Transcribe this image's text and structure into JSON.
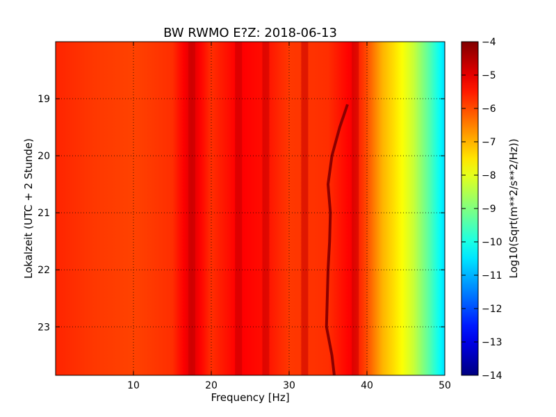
{
  "chart_data": {
    "type": "heatmap",
    "title": "BW RWMO E?Z: 2018-06-13",
    "xlabel": "Frequency [Hz]",
    "ylabel": "Lokalzeit (UTC + 2 Stunde)",
    "colorbar_label": "Log10(Sqrt(m**2/s**2/Hz))",
    "xlim": [
      0,
      50
    ],
    "ylim_top_to_bottom": [
      18.0,
      23.85
    ],
    "clim": [
      -14,
      -4
    ],
    "colormap": "jet",
    "grid": true,
    "x_ticks": [
      {
        "value": 10,
        "label": "10"
      },
      {
        "value": 20,
        "label": "20"
      },
      {
        "value": 30,
        "label": "30"
      },
      {
        "value": 40,
        "label": "40"
      },
      {
        "value": 50,
        "label": "50"
      }
    ],
    "y_ticks": [
      {
        "value": 19,
        "label": "19"
      },
      {
        "value": 20,
        "label": "20"
      },
      {
        "value": 21,
        "label": "21"
      },
      {
        "value": 22,
        "label": "22"
      },
      {
        "value": 23,
        "label": "23"
      }
    ],
    "colorbar_ticks": [
      {
        "value": -4,
        "label": "−4"
      },
      {
        "value": -5,
        "label": "−5"
      },
      {
        "value": -6,
        "label": "−6"
      },
      {
        "value": -7,
        "label": "−7"
      },
      {
        "value": -8,
        "label": "−8"
      },
      {
        "value": -9,
        "label": "−9"
      },
      {
        "value": -10,
        "label": "−10"
      },
      {
        "value": -11,
        "label": "−11"
      },
      {
        "value": -12,
        "label": "−12"
      },
      {
        "value": -13,
        "label": "−13"
      },
      {
        "value": -14,
        "label": "−14"
      }
    ],
    "spectrum_profile": {
      "frequencies": [
        0,
        5,
        10,
        15,
        17.5,
        20,
        23.5,
        27,
        30,
        35,
        38,
        40,
        42,
        44,
        46,
        48,
        50
      ],
      "values": [
        -5.6,
        -5.8,
        -5.9,
        -5.7,
        -4.9,
        -5.7,
        -5.2,
        -5.4,
        -5.8,
        -5.7,
        -5.2,
        -6.0,
        -7.0,
        -7.6,
        -8.3,
        -9.4,
        -10.6
      ]
    },
    "persistent_bands_hz": [
      17.5,
      23.5,
      27.0,
      32.0,
      38.5
    ],
    "tonal_line": {
      "time": [
        19.1,
        19.5,
        20.0,
        20.5,
        21.0,
        21.5,
        22.0,
        22.5,
        23.0,
        23.5,
        23.85
      ],
      "frequency": [
        37.5,
        36.5,
        35.5,
        35.0,
        35.3,
        35.2,
        35.0,
        34.9,
        34.8,
        35.5,
        35.8
      ]
    }
  }
}
